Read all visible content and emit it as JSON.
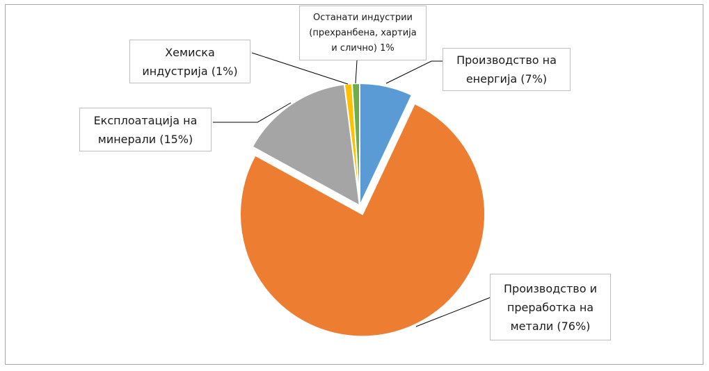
{
  "chart_data": {
    "type": "pie",
    "title": "",
    "slices": [
      {
        "label": "Производство на енергија (7%)",
        "value": 7,
        "color": "#5b9bd5",
        "exploded": false
      },
      {
        "label": "Производство и преработка на метали (76%)",
        "value": 76,
        "color": "#ed7d31",
        "exploded": true
      },
      {
        "label": "Експлоатација на минерали (15%)",
        "value": 15,
        "color": "#a5a5a5",
        "exploded": false
      },
      {
        "label": "Хемиска индустрија (1%)",
        "value": 1,
        "color": "#ffc000",
        "exploded": false
      },
      {
        "label": "Останати индустрии (прехранбена, хартија и слично) 1%",
        "value": 1,
        "color": "#70ad47",
        "exploded": false
      }
    ],
    "legend": "none",
    "data_labels": "callouts"
  },
  "labels": {
    "energy": [
      "Производство на",
      "енергија (7%)"
    ],
    "metals": [
      "Производство и",
      "преработка на",
      "метали (76%)"
    ],
    "minerals": [
      "Експлоатација на",
      "минерали (15%)"
    ],
    "chemical": [
      "Хемиска",
      "индустрија (1%)"
    ],
    "other": [
      "Останати индустрии",
      "(прехранбена, хартија",
      "и слично)  1%"
    ]
  }
}
